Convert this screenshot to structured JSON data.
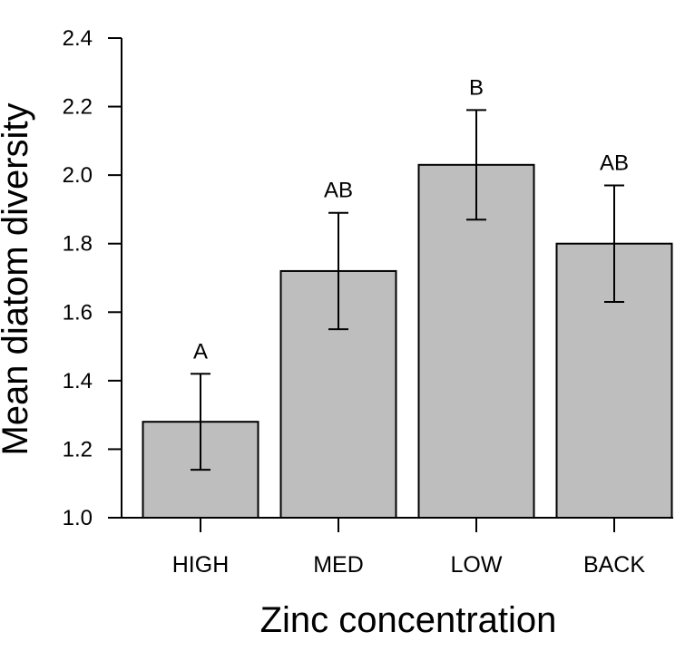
{
  "chart_data": {
    "type": "bar",
    "title": "",
    "xlabel": "Zinc concentration",
    "ylabel": "Mean diatom diversity",
    "categories": [
      "HIGH",
      "MED",
      "LOW",
      "BACK"
    ],
    "values": [
      1.28,
      1.72,
      2.03,
      1.8
    ],
    "error_low": [
      1.14,
      1.55,
      1.87,
      1.63
    ],
    "error_high": [
      1.42,
      1.89,
      2.19,
      1.97
    ],
    "significance_labels": [
      "A",
      "AB",
      "B",
      "AB"
    ],
    "ylim": [
      1.0,
      2.4
    ],
    "yticks": [
      "1.0",
      "1.2",
      "1.4",
      "1.6",
      "1.8",
      "2.0",
      "2.2",
      "2.4"
    ],
    "grid": false,
    "bar_color": "#bebebe",
    "edge_color": "#000000"
  }
}
